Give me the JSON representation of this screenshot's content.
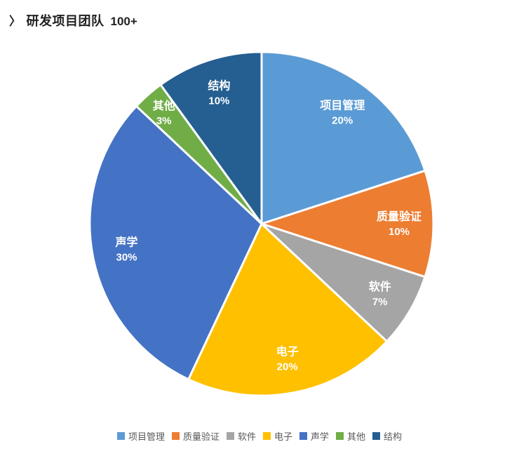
{
  "header": {
    "chevron_icon": "〉",
    "title": "研发项目团队",
    "count_badge": "100+"
  },
  "colors": {
    "background": "#ffffff",
    "title_text": "#212121",
    "slice_label_text": "#ffffff",
    "slice_border": "#ffffff",
    "legend_text": "#595959"
  },
  "chart_data": {
    "type": "pie",
    "title": "研发项目团队 100+",
    "unit": "percent",
    "direction": "clockwise",
    "start_angle": "12-oclock",
    "legend_position": "bottom",
    "categories": [
      "项目管理",
      "质量验证",
      "软件",
      "电子",
      "声学",
      "其他",
      "结构"
    ],
    "values": [
      20,
      10,
      7,
      20,
      30,
      3,
      10
    ],
    "slices": [
      {
        "label": "项目管理",
        "value": 20,
        "percent_label": "20%",
        "color": "#5B9BD5"
      },
      {
        "label": "质量验证",
        "value": 10,
        "percent_label": "10%",
        "color": "#ED7D31"
      },
      {
        "label": "软件",
        "value": 7,
        "percent_label": "7%",
        "color": "#A5A5A5"
      },
      {
        "label": "电子",
        "value": 20,
        "percent_label": "20%",
        "color": "#FFC000"
      },
      {
        "label": "声学",
        "value": 30,
        "percent_label": "30%",
        "color": "#4472C4"
      },
      {
        "label": "其他",
        "value": 3,
        "percent_label": "3%",
        "color": "#70AD47"
      },
      {
        "label": "结构",
        "value": 10,
        "percent_label": "10%",
        "color": "#255E91"
      }
    ]
  }
}
